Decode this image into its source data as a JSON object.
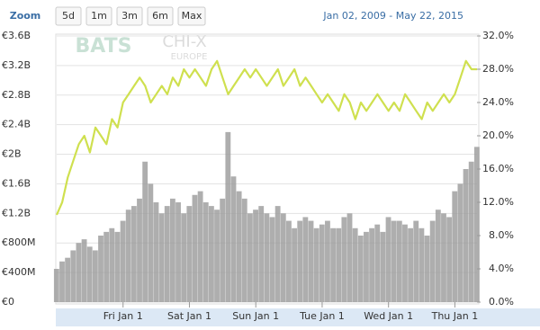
{
  "toolbar": {
    "zoom_label": "Zoom",
    "buttons": [
      "5d",
      "1m",
      "3m",
      "6m",
      "Max"
    ],
    "date_range": "Jan 02, 2009 - May 22, 2015"
  },
  "watermark": [
    "BATS",
    "CHI-X",
    "EUROPE"
  ],
  "chart_data": {
    "type": "bar-line",
    "categories": [
      null,
      null,
      null,
      null,
      null,
      null,
      null,
      null,
      null,
      null,
      null,
      null,
      "Fri Jan 1",
      null,
      null,
      null,
      null,
      null,
      null,
      null,
      null,
      null,
      null,
      null,
      "Sat Jan 1",
      null,
      null,
      null,
      null,
      null,
      null,
      null,
      null,
      null,
      null,
      null,
      "Sun Jan 1",
      null,
      null,
      null,
      null,
      null,
      null,
      null,
      null,
      null,
      null,
      null,
      "Tue Jan 1",
      null,
      null,
      null,
      null,
      null,
      null,
      null,
      null,
      null,
      null,
      null,
      "Wed Jan 1",
      null,
      null,
      null,
      null,
      null,
      null,
      null,
      null,
      null,
      null,
      null,
      "Thu Jan 1",
      null,
      null,
      null,
      null
    ],
    "series": [
      {
        "type": "bar",
        "color": "#9a9a9a",
        "values": [
          450000000,
          550000000,
          600000000,
          700000000,
          800000000,
          850000000,
          750000000,
          700000000,
          900000000,
          950000000,
          1000000000,
          950000000,
          1100000000,
          1250000000,
          1300000000,
          1400000000,
          1900000000,
          1600000000,
          1350000000,
          1200000000,
          1300000000,
          1400000000,
          1350000000,
          1200000000,
          1300000000,
          1450000000,
          1500000000,
          1350000000,
          1300000000,
          1250000000,
          1400000000,
          2300000000,
          1700000000,
          1500000000,
          1400000000,
          1200000000,
          1250000000,
          1300000000,
          1200000000,
          1150000000,
          1300000000,
          1200000000,
          1100000000,
          1000000000,
          1100000000,
          1150000000,
          1100000000,
          1000000000,
          1050000000,
          1100000000,
          1000000000,
          1000000000,
          1150000000,
          1200000000,
          1000000000,
          900000000,
          950000000,
          1000000000,
          1050000000,
          950000000,
          1150000000,
          1100000000,
          1100000000,
          1050000000,
          1000000000,
          1100000000,
          1000000000,
          900000000,
          1100000000,
          1250000000,
          1200000000,
          1150000000,
          1500000000,
          1600000000,
          1800000000,
          1900000000,
          2100000000
        ]
      },
      {
        "type": "line",
        "axis": "y2",
        "color": "#cfe04f",
        "values": [
          10.5,
          12,
          15,
          17,
          19,
          20,
          18,
          21,
          20,
          19,
          22,
          21,
          24,
          25,
          26,
          27,
          26,
          24,
          25,
          26,
          25,
          27,
          26,
          28,
          27,
          28,
          27,
          26,
          28,
          29,
          27,
          25,
          26,
          27,
          28,
          27,
          28,
          27,
          26,
          27,
          28,
          26,
          27,
          28,
          26,
          27,
          26,
          25,
          24,
          25,
          24,
          23,
          25,
          24,
          22,
          24,
          23,
          24,
          25,
          24,
          23,
          24,
          23,
          25,
          24,
          23,
          22,
          24,
          23,
          24,
          25,
          24,
          25,
          27,
          29,
          28,
          28
        ]
      }
    ],
    "ylim": [
      0,
      3600000000
    ],
    "yticks": [
      {
        "value": 0,
        "label": "€0"
      },
      {
        "value": 400000000,
        "label": "€400M"
      },
      {
        "value": 800000000,
        "label": "€800M"
      },
      {
        "value": 1200000000,
        "label": "€1.2B"
      },
      {
        "value": 1600000000,
        "label": "€1.6B"
      },
      {
        "value": 2000000000,
        "label": "€2B"
      },
      {
        "value": 2400000000,
        "label": "€2.4B"
      },
      {
        "value": 2800000000,
        "label": "€2.8B"
      },
      {
        "value": 3200000000,
        "label": "€3.2B"
      },
      {
        "value": 3600000000,
        "label": "€3.6B"
      }
    ],
    "y2lim": [
      0,
      32
    ],
    "y2ticks": [
      {
        "value": 0,
        "label": "0.0%"
      },
      {
        "value": 4,
        "label": "4.0%"
      },
      {
        "value": 8,
        "label": "8.0%"
      },
      {
        "value": 12,
        "label": "12.0%"
      },
      {
        "value": 16,
        "label": "16.0%"
      },
      {
        "value": 20,
        "label": "20.0%"
      },
      {
        "value": 24,
        "label": "24.0%"
      },
      {
        "value": 28,
        "label": "28.0%"
      },
      {
        "value": 32,
        "label": "32.0%"
      }
    ],
    "grid": true
  }
}
